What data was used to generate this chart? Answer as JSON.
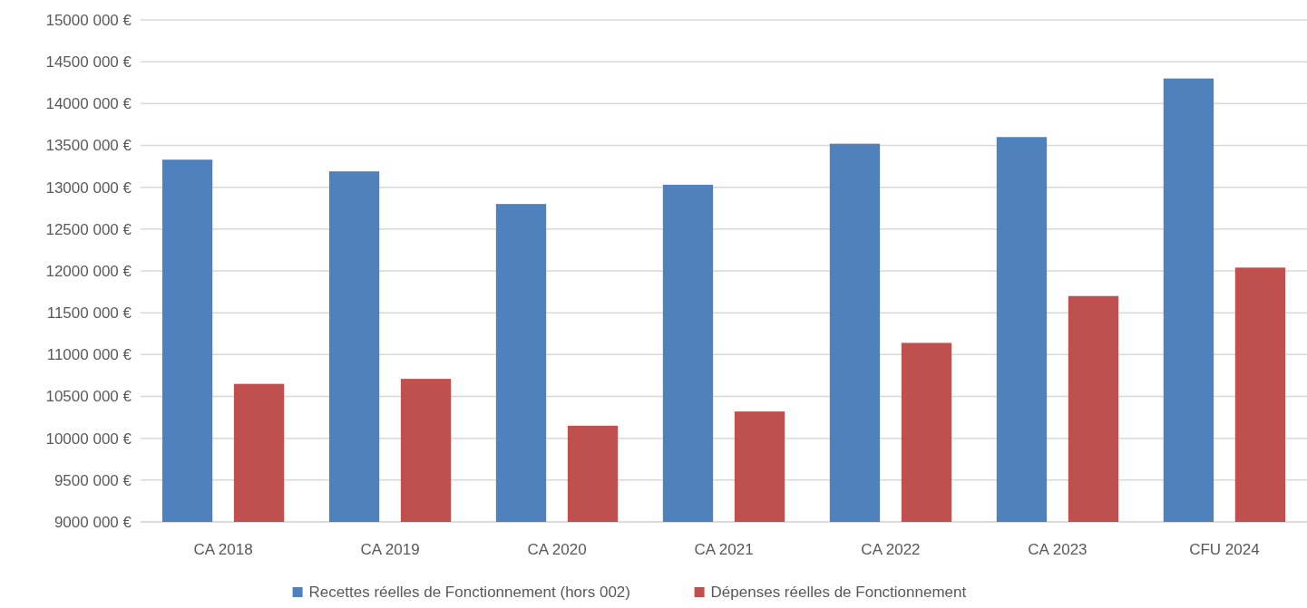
{
  "chart_data": {
    "type": "bar",
    "categories": [
      "CA 2018",
      "CA 2019",
      "CA 2020",
      "CA 2021",
      "CA 2022",
      "CA 2023",
      "CFU 2024"
    ],
    "series": [
      {
        "name": "Recettes réelles de Fonctionnement (hors 002)",
        "color": "#4f81bd",
        "values": [
          13330000,
          13190000,
          12800000,
          13030000,
          13520000,
          13600000,
          14300000
        ]
      },
      {
        "name": "Dépenses réelles de Fonctionnement",
        "color": "#c0504d",
        "values": [
          10650000,
          10710000,
          10150000,
          10320000,
          11140000,
          11700000,
          12040000
        ]
      }
    ],
    "ylim": [
      9000000,
      15000000
    ],
    "yticks": [
      {
        "value": 9000000,
        "label": "9000 000 €"
      },
      {
        "value": 9500000,
        "label": "9500 000 €"
      },
      {
        "value": 10000000,
        "label": "10000 000 €"
      },
      {
        "value": 10500000,
        "label": "10500 000 €"
      },
      {
        "value": 11000000,
        "label": "11000 000 €"
      },
      {
        "value": 11500000,
        "label": "11500 000 €"
      },
      {
        "value": 12000000,
        "label": "12000 000 €"
      },
      {
        "value": 12500000,
        "label": "12500 000 €"
      },
      {
        "value": 13000000,
        "label": "13000 000 €"
      },
      {
        "value": 13500000,
        "label": "13500 000 €"
      },
      {
        "value": 14000000,
        "label": "14000 000 €"
      },
      {
        "value": 14500000,
        "label": "14500 000 €"
      },
      {
        "value": 15000000,
        "label": "15000 000 €"
      }
    ],
    "grid": "y",
    "legend": "bottom"
  }
}
